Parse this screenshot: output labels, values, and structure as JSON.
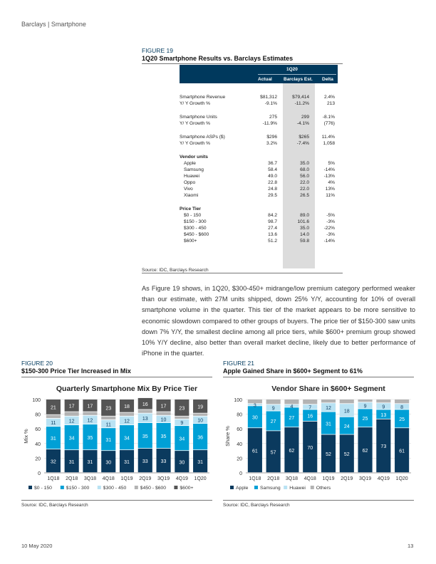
{
  "header": {
    "running_title": "Barclays | Smartphone"
  },
  "figure19": {
    "label": "FIGURE 19",
    "title": "1Q20 Smartphone Results vs. Barclays Estimates",
    "table": {
      "period": "1Q20",
      "columns": [
        "Actual",
        "Barclays Est.",
        "Delta"
      ],
      "rows": [
        {
          "label": "Smartphone Revenue",
          "actual": "$81,312",
          "est": "$79,414",
          "delta": "2.4%"
        },
        {
          "label": "Y/ Y Growth %",
          "actual": "-9.1%",
          "est": "-11.2%",
          "delta": "213"
        },
        {
          "label": "Smartphone Units",
          "actual": "275",
          "est": "299",
          "delta": "-8.1%"
        },
        {
          "label": "Y/ Y Growth %",
          "actual": "-11.9%",
          "est": "-4.1%",
          "delta": "(776)"
        },
        {
          "label": "Smartphone ASPs ($)",
          "actual": "$296",
          "est": "$265",
          "delta": "11.4%"
        },
        {
          "label": "Y/ Y Growth %",
          "actual": "3.2%",
          "est": "-7.4%",
          "delta": "1,058"
        },
        {
          "label": "Vendor units",
          "actual": "",
          "est": "",
          "delta": ""
        },
        {
          "label": "Apple",
          "actual": "36.7",
          "est": "35.0",
          "delta": "5%"
        },
        {
          "label": "Samsung",
          "actual": "58.4",
          "est": "68.0",
          "delta": "-14%"
        },
        {
          "label": "Huawei",
          "actual": "49.0",
          "est": "56.0",
          "delta": "-13%"
        },
        {
          "label": "Oppo",
          "actual": "22.8",
          "est": "22.0",
          "delta": "4%"
        },
        {
          "label": "Vivo",
          "actual": "24.8",
          "est": "22.0",
          "delta": "13%"
        },
        {
          "label": "Xiaomi",
          "actual": "29.5",
          "est": "26.5",
          "delta": "11%"
        },
        {
          "label": "Price Tier",
          "actual": "",
          "est": "",
          "delta": ""
        },
        {
          "label": "$0 - 150",
          "actual": "84.2",
          "est": "89.0",
          "delta": "-5%"
        },
        {
          "label": "$150 - 300",
          "actual": "98.7",
          "est": "101.6",
          "delta": "-3%"
        },
        {
          "label": "$300 - 450",
          "actual": "27.4",
          "est": "35.0",
          "delta": "-22%"
        },
        {
          "label": "$450 - $600",
          "actual": "13.6",
          "est": "14.0",
          "delta": "-3%"
        },
        {
          "label": "$600+",
          "actual": "51.2",
          "est": "59.8",
          "delta": "-14%"
        }
      ]
    },
    "source": "Source: IDC, Barclays Research"
  },
  "body_paragraph": "As Figure 19 shows, in 1Q20, $300-450+ midrange/low premium category performed weaker than our estimate, with 27M units shipped, down 25% Y/Y, accounting for 10% of overall smartphone volume in the quarter. This tier of the market appears to be more sensitive to economic slowdown compared to other groups of buyers. The price tier of $150-300 saw units down 7% Y/Y, the smallest decline among all price tiers, while $600+ premium group showed 10% Y/Y decline, also better than overall market decline, likely due to better performance of iPhone in the quarter.",
  "figure20": {
    "label": "FIGURE 20",
    "title": "$150-300 Price Tier Increased in Mix",
    "source": "Source: IDC, Barclays Research"
  },
  "figure21": {
    "label": "FIGURE 21",
    "title": "Apple Gained Share in $600+ Segment to 61%",
    "source": "Source: IDC, Barclays Research"
  },
  "chart_data": [
    {
      "type": "bar",
      "stacked": true,
      "title": "Quarterly Smartphone Mix By Price Tier",
      "ylabel": "Mix %",
      "ylim": [
        0,
        100
      ],
      "yticks": [
        0,
        20,
        40,
        60,
        80,
        100
      ],
      "categories": [
        "1Q18",
        "2Q18",
        "3Q18",
        "4Q18",
        "1Q19",
        "2Q19",
        "3Q19",
        "4Q19",
        "1Q20"
      ],
      "series": [
        {
          "name": "$0 - 150",
          "color": "#0b3a5e",
          "values": [
            32,
            31,
            31,
            30,
            31,
            33,
            33,
            30,
            31
          ]
        },
        {
          "name": "$150 - 300",
          "color": "#00a0d6",
          "values": [
            31,
            34,
            35,
            31,
            34,
            35,
            35,
            34,
            36
          ]
        },
        {
          "name": "$300 - 450",
          "color": "#b9e2f3",
          "values": [
            11,
            12,
            12,
            11,
            12,
            13,
            10,
            9,
            10
          ]
        },
        {
          "name": "$450 - $600",
          "color": "#b3b3b3",
          "values": [
            5,
            6,
            5,
            5,
            5,
            5,
            5,
            4,
            4
          ]
        },
        {
          "name": "$600+",
          "color": "#555555",
          "values": [
            21,
            17,
            17,
            23,
            18,
            16,
            17,
            23,
            19
          ]
        }
      ],
      "label_series": [
        "$0 - 150",
        "$150 - 300",
        "$300 - 450",
        "$600+"
      ],
      "legend": "bottom"
    },
    {
      "type": "bar",
      "stacked": true,
      "title": "Vendor Share in $600+ Segment",
      "ylabel": "Share %",
      "ylim": [
        0,
        100
      ],
      "yticks": [
        0,
        20,
        40,
        60,
        80,
        100
      ],
      "categories": [
        "1Q18",
        "2Q18",
        "3Q18",
        "4Q18",
        "1Q19",
        "2Q19",
        "3Q19",
        "4Q19",
        "1Q20"
      ],
      "series": [
        {
          "name": "Apple",
          "color": "#0b3a5e",
          "values": [
            61,
            57,
            62,
            70,
            52,
            52,
            62,
            73,
            61
          ]
        },
        {
          "name": "Samsung",
          "color": "#00a0d6",
          "values": [
            30,
            27,
            27,
            16,
            31,
            24,
            25,
            13,
            25
          ]
        },
        {
          "name": "Huawei",
          "color": "#b9e2f3",
          "values": [
            3,
            9,
            4,
            7,
            12,
            18,
            9,
            9,
            8
          ]
        },
        {
          "name": "Others",
          "color": "#b3b3b3",
          "values": [
            6,
            7,
            7,
            7,
            5,
            6,
            4,
            5,
            6
          ]
        }
      ],
      "label_series": [
        "Apple",
        "Samsung",
        "Huawei"
      ],
      "legend": "bottom"
    }
  ],
  "footer": {
    "date": "10 May 2020",
    "page": "13"
  }
}
